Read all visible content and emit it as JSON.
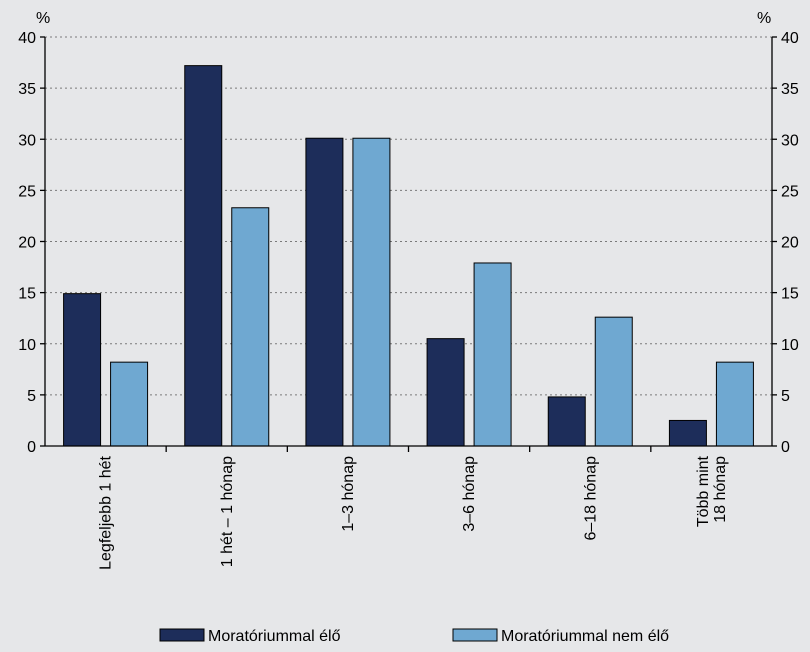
{
  "chart_data": {
    "type": "bar",
    "title": "",
    "y_unit_left": "%",
    "y_unit_right": "%",
    "ylim": [
      0,
      40
    ],
    "yticks": [
      0,
      5,
      10,
      15,
      20,
      25,
      30,
      35,
      40
    ],
    "grid": true,
    "legend_position": "bottom",
    "categories": [
      [
        "Legfeljebb 1 hét"
      ],
      [
        "1 hét – 1 hónap"
      ],
      [
        "1–3 hónap"
      ],
      [
        "3–6 hónap"
      ],
      [
        "6–18 hónap"
      ],
      [
        "Több mint",
        "18 hónap"
      ]
    ],
    "series": [
      {
        "name": "Moratóriummal élő",
        "color": "#1d2d5a",
        "values": [
          14.9,
          37.2,
          30.1,
          10.5,
          4.8,
          2.5
        ]
      },
      {
        "name": "Moratóriummal nem élő",
        "color": "#6fa8d1",
        "values": [
          8.2,
          23.3,
          30.1,
          17.9,
          12.6,
          8.2
        ]
      }
    ]
  }
}
